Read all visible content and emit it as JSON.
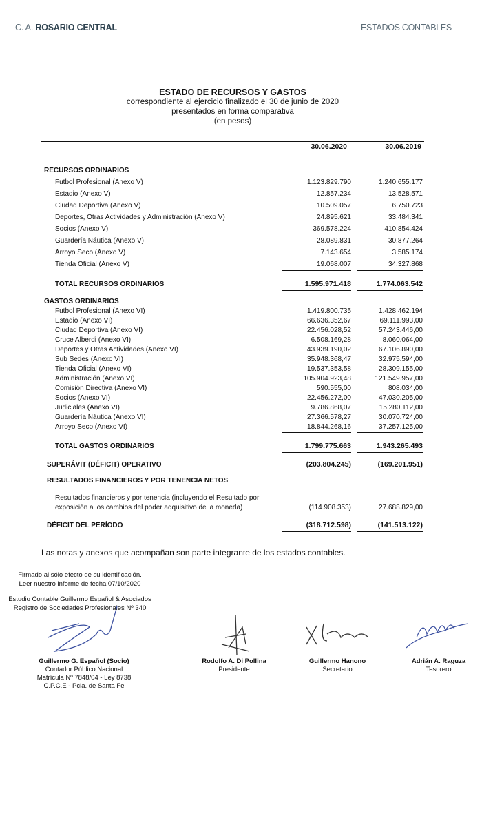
{
  "header": {
    "brand_prefix": "C. A. ",
    "brand_name": "ROSARIO CENTRAL",
    "section": "ESTADOS CONTABLES"
  },
  "title": {
    "main": "ESTADO DE RECURSOS Y GASTOS",
    "line1": "correspondiente al ejercicio finalizado el 30 de junio de 2020",
    "line2": "presentados en forma comparativa",
    "line3": "(en pesos)"
  },
  "columns": [
    "30.06.2020",
    "30.06.2019"
  ],
  "recursos": {
    "heading": "RECURSOS ORDINARIOS",
    "items": [
      {
        "label": "Futbol Profesional (Anexo V)",
        "v2020": "1.123.829.790",
        "v2019": "1.240.655.177"
      },
      {
        "label": "Estadio (Anexo V)",
        "v2020": "12.857.234",
        "v2019": "13.528.571"
      },
      {
        "label": "Ciudad Deportiva (Anexo V)",
        "v2020": "10.509.057",
        "v2019": "6.750.723"
      },
      {
        "label": "Deportes, Otras Actividades y Administración (Anexo V)",
        "v2020": "24.895.621",
        "v2019": "33.484.341"
      },
      {
        "label": "Socios (Anexo V)",
        "v2020": "369.578.224",
        "v2019": "410.854.424"
      },
      {
        "label": "Guardería Náutica (Anexo V)",
        "v2020": "28.089.831",
        "v2019": "30.877.264"
      },
      {
        "label": "Arroyo Seco (Anexo V)",
        "v2020": "7.143.654",
        "v2019": "3.585.174"
      },
      {
        "label": "Tienda Oficial (Anexo V)",
        "v2020": "19.068.007",
        "v2019": "34.327.868"
      }
    ],
    "total": {
      "label": "TOTAL RECURSOS ORDINARIOS",
      "v2020": "1.595.971.418",
      "v2019": "1.774.063.542"
    }
  },
  "gastos": {
    "heading": "GASTOS ORDINARIOS",
    "items": [
      {
        "label": "Futbol Profesional (Anexo VI)",
        "v2020": "1.419.800.735",
        "v2019": "1.428.462.194"
      },
      {
        "label": "Estadio (Anexo VI)",
        "v2020": "66.636.352,67",
        "v2019": "69.111.993,00"
      },
      {
        "label": "Ciudad Deportiva (Anexo VI)",
        "v2020": "22.456.028,52",
        "v2019": "57.243.446,00"
      },
      {
        "label": "Cruce Alberdi (Anexo VI)",
        "v2020": "6.508.169,28",
        "v2019": "8.060.064,00"
      },
      {
        "label": "Deportes y Otras Actividades (Anexo VI)",
        "v2020": "43.939.190,02",
        "v2019": "67.106.890,00"
      },
      {
        "label": "Sub Sedes (Anexo VI)",
        "v2020": "35.948.368,47",
        "v2019": "32.975.594,00"
      },
      {
        "label": "Tienda Oficial (Anexo VI)",
        "v2020": "19.537.353,58",
        "v2019": "28.309.155,00"
      },
      {
        "label": "Administración  (Anexo VI)",
        "v2020": "105.904.923,48",
        "v2019": "121.549.957,00"
      },
      {
        "label": "Comisión Directiva (Anexo VI)",
        "v2020": "590.555,00",
        "v2019": "808.034,00"
      },
      {
        "label": "Socios (Anexo VI)",
        "v2020": "22.456.272,00",
        "v2019": "47.030.205,00"
      },
      {
        "label": "Judiciales (Anexo VI)",
        "v2020": "9.786.868,07",
        "v2019": "15.280.112,00"
      },
      {
        "label": "Guardería Náutica (Anexo VI)",
        "v2020": "27.366.578,27",
        "v2019": "30.070.724,00"
      },
      {
        "label": "Arroyo Seco (Anexo VI)",
        "v2020": "18.844.268,16",
        "v2019": "37.257.125,00"
      }
    ],
    "total": {
      "label": "TOTAL GASTOS ORDINARIOS",
      "v2020": "1.799.775.663",
      "v2019": "1.943.265.493"
    }
  },
  "superavit": {
    "label": "SUPERÁVIT (DÉFICIT) OPERATIVO",
    "v2020": "(203.804.245)",
    "v2019": "(169.201.951)"
  },
  "financieros": {
    "heading": "RESULTADOS FINANCIEROS Y POR TENENCIA NETOS",
    "label_line1": "Resultados financieros y por tenencia (incluyendo el Resultado por",
    "label_line2": "exposición a los cambios del poder adquisitivo de la moneda)",
    "v2020": "(114.908.353)",
    "v2019": "27.688.829,00"
  },
  "deficit": {
    "label": "DÉFICIT DEL PERÍODO",
    "v2020": "(318.712.598)",
    "v2019": "(141.513.122)"
  },
  "notes": "Las notas y anexos que acompañan son parte integrante de los estados contables.",
  "firm": {
    "line1": "Firmado al sólo efecto de su identificación.",
    "line2": "Leer nuestro informe de fecha 07/10/2020",
    "line3": "Estudio Contable Guillermo Español & Asociados",
    "line4": "Registro de Sociedades Profesionales Nº 340"
  },
  "signatories": [
    {
      "name": "Guillermo G. Español (Socio)",
      "role": "Contador Público Nacional",
      "extra1": "Matrícula Nº 7848/04 - Ley 8738",
      "extra2": "C.P.C.E - Pcia. de Santa Fe"
    },
    {
      "name": "Rodolfo A. Di Pollina",
      "role": "Presidente"
    },
    {
      "name": "Guillermo Hanono",
      "role": "Secretario"
    },
    {
      "name": "Adrián A. Raguza",
      "role": "Tesorero"
    }
  ],
  "colors": {
    "header_text": "#5d6d78",
    "header_brand": "#2f4350",
    "signature_ink": "#3a4fa0"
  }
}
